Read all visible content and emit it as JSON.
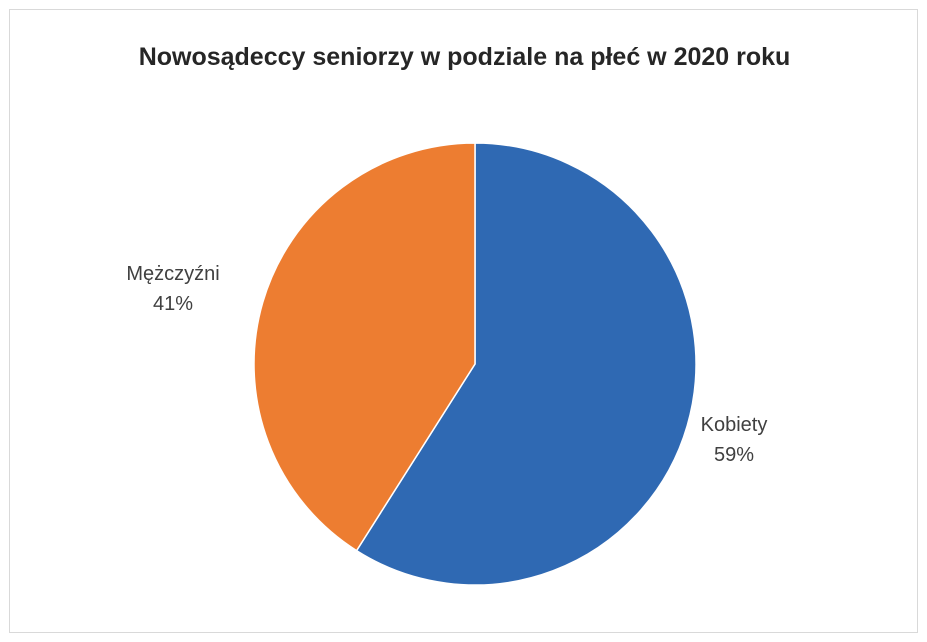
{
  "chart_data": {
    "type": "pie",
    "title": "Nowosądeccy seniorzy w podziale na płeć w 2020 roku",
    "categories": [
      "Kobiety",
      "Mężczyźni"
    ],
    "values": [
      59,
      41
    ],
    "labels": [
      {
        "name": "Kobiety",
        "percent": "59%"
      },
      {
        "name": "Mężczyźni",
        "percent": "41%"
      }
    ],
    "colors": [
      "#2F69B3",
      "#ED7D31"
    ],
    "start": "12 o'clock",
    "direction": "clockwise",
    "legend": "none"
  }
}
